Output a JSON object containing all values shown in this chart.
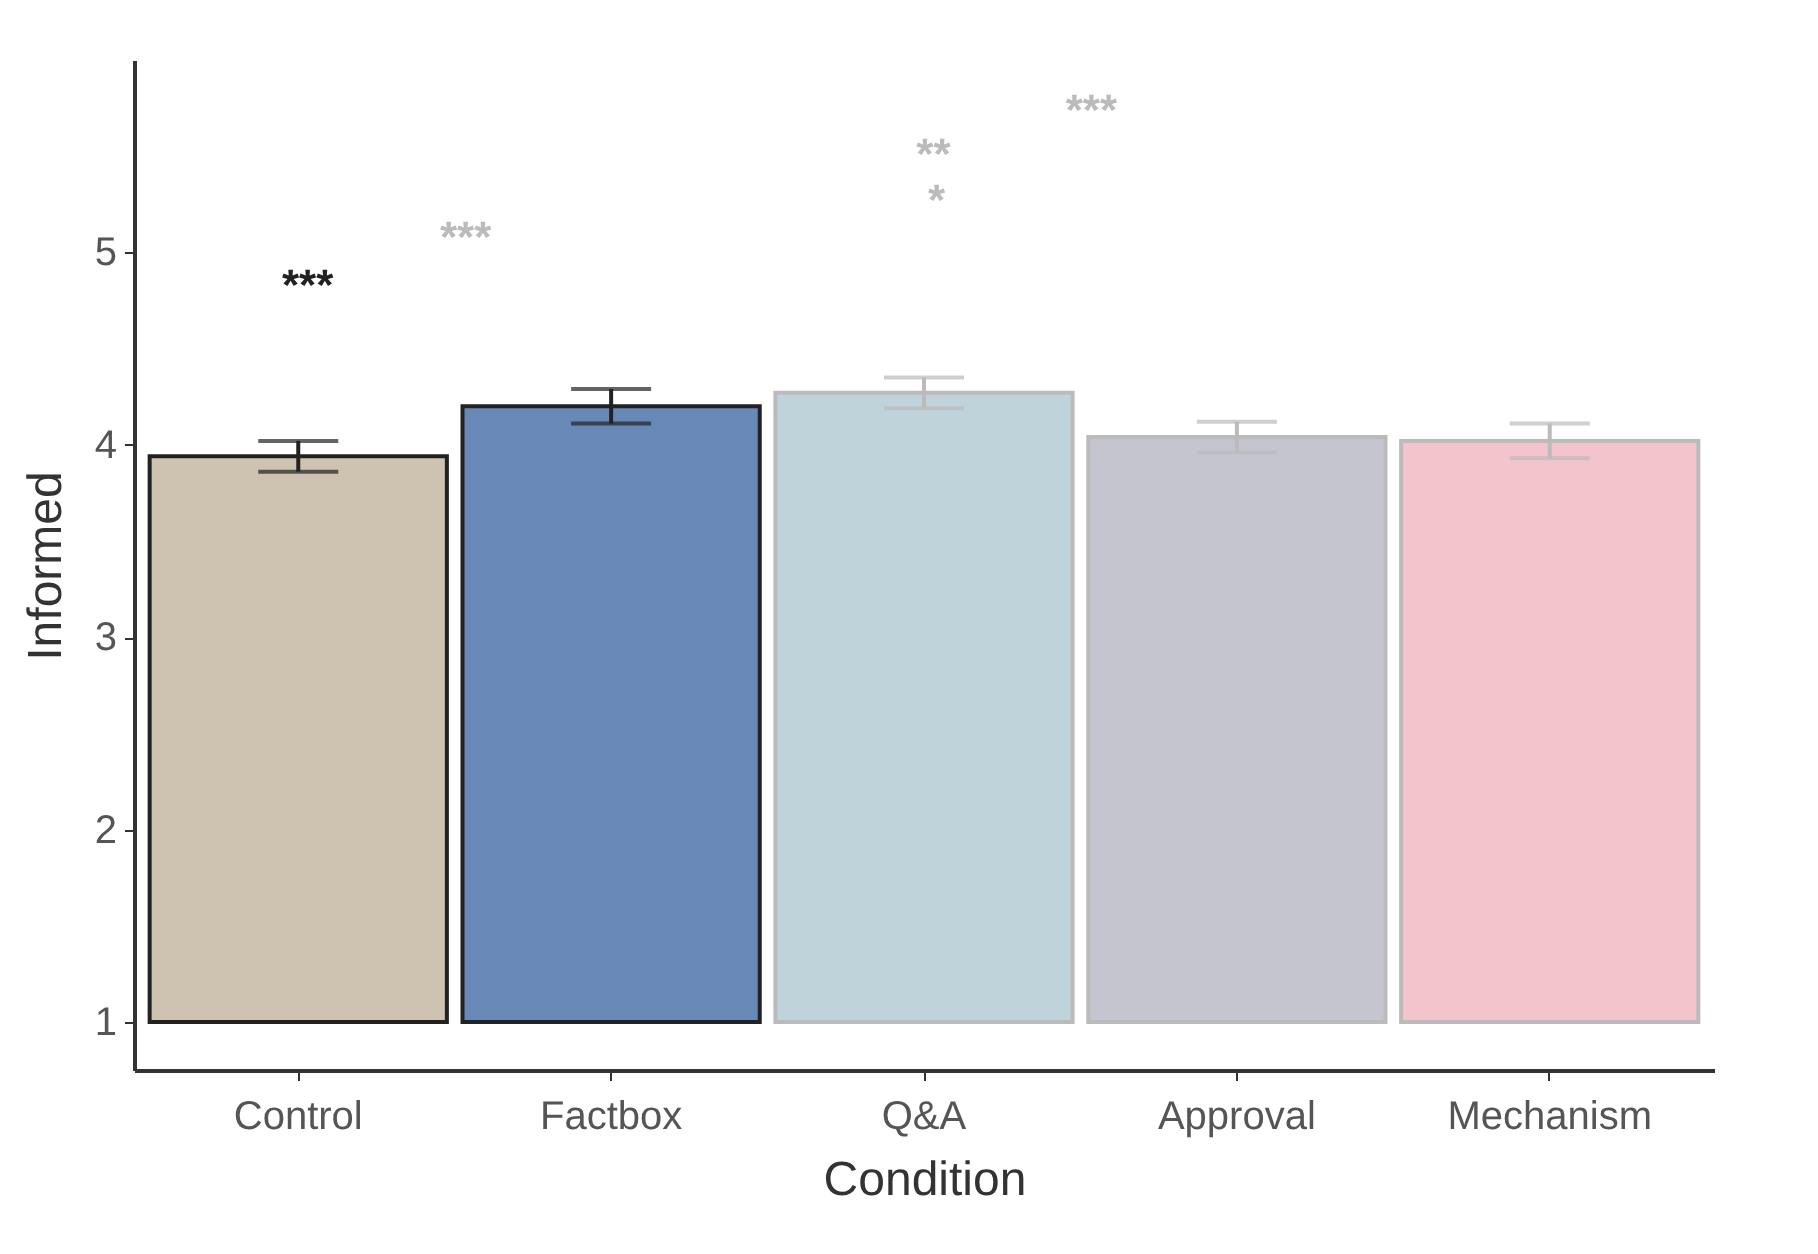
{
  "chart_data": {
    "type": "bar",
    "xlabel": "Condition",
    "ylabel": "Informed",
    "categories": [
      "Control",
      "Factbox",
      "Q&A",
      "Approval",
      "Mechanism"
    ],
    "base": [
      1,
      1,
      1,
      1,
      1
    ],
    "values": [
      2.94,
      3.2,
      3.27,
      3.04,
      3.02
    ],
    "errors": [
      0.08,
      0.09,
      0.08,
      0.08,
      0.09
    ],
    "colors": [
      "#cdc3b0",
      "#6889b8",
      "#bfd3da",
      "#c5c5d0",
      "#f4c4cc"
    ],
    "ylim": [
      0.75,
      6
    ],
    "yticks": [
      1,
      2,
      3,
      4,
      5
    ],
    "grid": false,
    "annotations": [
      "***",
      "***",
      "*",
      "**",
      "***"
    ]
  }
}
